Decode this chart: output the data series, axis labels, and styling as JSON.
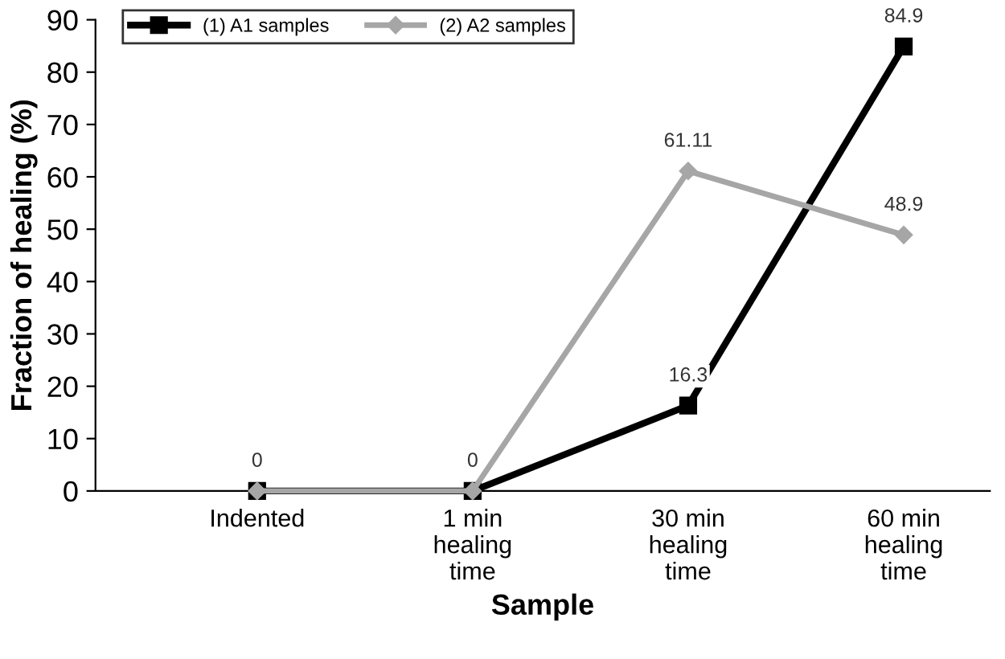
{
  "chart_data": {
    "type": "line",
    "xlabel": "Sample",
    "ylabel": "Fraction of healing (%)",
    "categories": [
      "Indented",
      "1 min\nhealing\ntime",
      "30 min\nhealing\ntime",
      "60 min\nhealing\ntime"
    ],
    "series": [
      {
        "name": "(1) A1 samples",
        "color": "#000000",
        "marker": "square",
        "values": [
          0,
          0,
          16.3,
          84.9
        ],
        "value_labels": [
          "0",
          "0",
          "16.3",
          "84.9"
        ]
      },
      {
        "name": "(2) A2 samples",
        "color": "#a6a6a6",
        "marker": "diamond",
        "values": [
          0,
          0,
          61.11,
          48.9
        ],
        "value_labels": [
          null,
          null,
          "61.11",
          "48.9"
        ]
      }
    ],
    "ylim": [
      0,
      90
    ],
    "yticks": [
      0,
      10,
      20,
      30,
      40,
      50,
      60,
      70,
      80,
      90
    ],
    "grid": false,
    "legend": "top left",
    "line_style": "solid"
  }
}
